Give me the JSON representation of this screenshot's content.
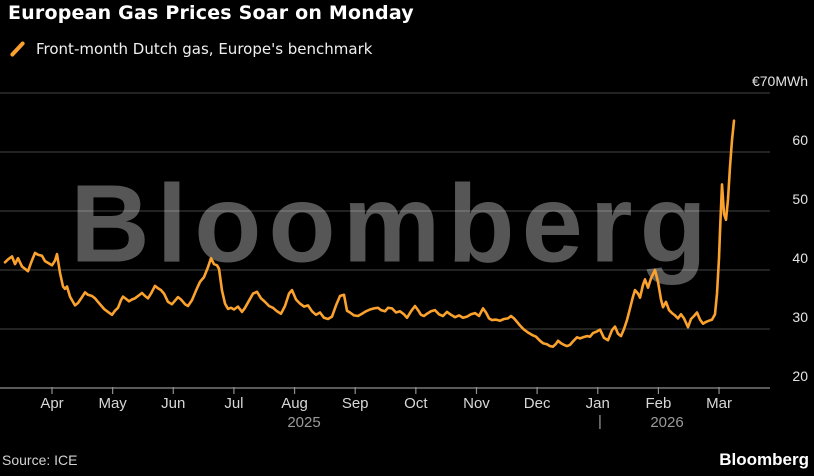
{
  "header": {
    "title": "European Gas Prices Soar on Monday",
    "legend_label": "Front-month Dutch gas, Europe's benchmark"
  },
  "watermark": {
    "text": "Bloomberg"
  },
  "footer": {
    "source": "Source: ICE",
    "brand": "Bloomberg"
  },
  "colors": {
    "background": "#000000",
    "line": "#FBA12D",
    "grid": "rgba(255,255,255,0.27)",
    "axis": "#909090",
    "watermark": "#565656"
  },
  "chart_data": {
    "type": "line",
    "title": "European Gas Prices Soar on Monday",
    "series_name": "Front-month Dutch gas, Europe's benchmark",
    "ylabel": "EUR/MWh",
    "ylim": [
      20,
      70
    ],
    "grid": "horizontal",
    "y_axis": {
      "side": "right",
      "ticks": [
        {
          "value": 70,
          "label": "€70MWh"
        },
        {
          "value": 60,
          "label": "60"
        },
        {
          "value": 50,
          "label": "50"
        },
        {
          "value": 40,
          "label": "40"
        },
        {
          "value": 30,
          "label": "30"
        },
        {
          "value": 20,
          "label": "20"
        }
      ]
    },
    "x_axis": {
      "months": [
        "Apr",
        "May",
        "Jun",
        "Jul",
        "Aug",
        "Sep",
        "Oct",
        "Nov",
        "Dec",
        "Jan",
        "Feb",
        "Mar"
      ],
      "years": [
        "2025",
        "2026"
      ],
      "year_divider": "|"
    },
    "summary": {
      "start_value_eur": 41,
      "december_low_eur": 27,
      "february_peak_eur": 40,
      "final_spike_high_eur": 65,
      "intermediate_spike_eur": 54.5
    },
    "points": [
      [
        5,
        41.3
      ],
      [
        8,
        41.8
      ],
      [
        12,
        42.3
      ],
      [
        15,
        41.0
      ],
      [
        18,
        42.0
      ],
      [
        22,
        40.6
      ],
      [
        25,
        40.2
      ],
      [
        28,
        39.8
      ],
      [
        31,
        41.2
      ],
      [
        35,
        42.9
      ],
      [
        38,
        42.6
      ],
      [
        42,
        42.4
      ],
      [
        45,
        41.5
      ],
      [
        48,
        41.2
      ],
      [
        52,
        40.8
      ],
      [
        55,
        41.6
      ],
      [
        57,
        42.7
      ],
      [
        60,
        39.5
      ],
      [
        63,
        37.2
      ],
      [
        65,
        36.8
      ],
      [
        67,
        37.2
      ],
      [
        70,
        35.5
      ],
      [
        73,
        34.6
      ],
      [
        75,
        34.0
      ],
      [
        78,
        34.4
      ],
      [
        82,
        35.4
      ],
      [
        85,
        36.2
      ],
      [
        88,
        35.8
      ],
      [
        92,
        35.6
      ],
      [
        95,
        35.2
      ],
      [
        98,
        34.6
      ],
      [
        101,
        34.0
      ],
      [
        104,
        33.4
      ],
      [
        108,
        32.9
      ],
      [
        112,
        32.4
      ],
      [
        115,
        33.1
      ],
      [
        118,
        33.6
      ],
      [
        121,
        34.9
      ],
      [
        123,
        35.5
      ],
      [
        126,
        35.1
      ],
      [
        129,
        34.7
      ],
      [
        132,
        35.0
      ],
      [
        135,
        35.2
      ],
      [
        138,
        35.6
      ],
      [
        142,
        36.1
      ],
      [
        145,
        35.6
      ],
      [
        148,
        35.2
      ],
      [
        151,
        36.0
      ],
      [
        155,
        37.3
      ],
      [
        158,
        36.9
      ],
      [
        161,
        36.6
      ],
      [
        164,
        36.0
      ],
      [
        168,
        34.6
      ],
      [
        172,
        34.2
      ],
      [
        175,
        34.8
      ],
      [
        178,
        35.4
      ],
      [
        181,
        35.0
      ],
      [
        185,
        34.2
      ],
      [
        188,
        33.9
      ],
      [
        192,
        34.9
      ],
      [
        196,
        36.5
      ],
      [
        200,
        38.0
      ],
      [
        204,
        38.8
      ],
      [
        208,
        40.5
      ],
      [
        211,
        42.0
      ],
      [
        214,
        41.0
      ],
      [
        217,
        40.8
      ],
      [
        219,
        40.2
      ],
      [
        222,
        36.5
      ],
      [
        225,
        34.3
      ],
      [
        228,
        33.4
      ],
      [
        231,
        33.6
      ],
      [
        234,
        33.3
      ],
      [
        238,
        33.8
      ],
      [
        242,
        32.9
      ],
      [
        245,
        33.6
      ],
      [
        249,
        34.8
      ],
      [
        253,
        36.0
      ],
      [
        257,
        36.3
      ],
      [
        261,
        35.2
      ],
      [
        265,
        34.6
      ],
      [
        269,
        33.9
      ],
      [
        273,
        33.6
      ],
      [
        277,
        33.0
      ],
      [
        281,
        32.6
      ],
      [
        285,
        33.9
      ],
      [
        289,
        36.0
      ],
      [
        292,
        36.6
      ],
      [
        296,
        35.0
      ],
      [
        300,
        34.3
      ],
      [
        304,
        33.8
      ],
      [
        308,
        34.0
      ],
      [
        312,
        33.0
      ],
      [
        316,
        32.4
      ],
      [
        320,
        32.8
      ],
      [
        324,
        31.9
      ],
      [
        328,
        31.7
      ],
      [
        332,
        32.1
      ],
      [
        336,
        34.0
      ],
      [
        340,
        35.6
      ],
      [
        344,
        35.8
      ],
      [
        347,
        33.1
      ],
      [
        350,
        32.8
      ],
      [
        354,
        32.3
      ],
      [
        358,
        32.2
      ],
      [
        362,
        32.6
      ],
      [
        366,
        33.0
      ],
      [
        370,
        33.3
      ],
      [
        374,
        33.5
      ],
      [
        378,
        33.6
      ],
      [
        381,
        33.2
      ],
      [
        385,
        33.0
      ],
      [
        388,
        33.6
      ],
      [
        392,
        33.5
      ],
      [
        396,
        32.8
      ],
      [
        400,
        33.0
      ],
      [
        404,
        32.5
      ],
      [
        407,
        31.9
      ],
      [
        411,
        33.0
      ],
      [
        415,
        33.9
      ],
      [
        418,
        33.2
      ],
      [
        421,
        32.4
      ],
      [
        424,
        32.2
      ],
      [
        427,
        32.6
      ],
      [
        431,
        33.0
      ],
      [
        435,
        33.2
      ],
      [
        439,
        32.5
      ],
      [
        443,
        32.2
      ],
      [
        447,
        32.9
      ],
      [
        451,
        32.4
      ],
      [
        455,
        32.0
      ],
      [
        459,
        32.3
      ],
      [
        463,
        31.9
      ],
      [
        467,
        32.1
      ],
      [
        471,
        32.5
      ],
      [
        475,
        32.7
      ],
      [
        479,
        32.2
      ],
      [
        483,
        33.5
      ],
      [
        486,
        32.8
      ],
      [
        489,
        31.8
      ],
      [
        492,
        31.5
      ],
      [
        496,
        31.6
      ],
      [
        500,
        31.4
      ],
      [
        504,
        31.7
      ],
      [
        508,
        31.8
      ],
      [
        511,
        32.2
      ],
      [
        514,
        31.8
      ],
      [
        517,
        31.2
      ],
      [
        520,
        30.6
      ],
      [
        524,
        29.9
      ],
      [
        528,
        29.4
      ],
      [
        532,
        29.0
      ],
      [
        536,
        28.7
      ],
      [
        540,
        28.0
      ],
      [
        543,
        27.6
      ],
      [
        547,
        27.4
      ],
      [
        550,
        27.1
      ],
      [
        553,
        27.0
      ],
      [
        556,
        27.5
      ],
      [
        558,
        28.0
      ],
      [
        561,
        27.6
      ],
      [
        564,
        27.3
      ],
      [
        567,
        27.1
      ],
      [
        570,
        27.3
      ],
      [
        573,
        27.9
      ],
      [
        577,
        28.6
      ],
      [
        580,
        28.4
      ],
      [
        583,
        28.6
      ],
      [
        587,
        28.8
      ],
      [
        590,
        28.7
      ],
      [
        593,
        29.3
      ],
      [
        597,
        29.6
      ],
      [
        600,
        29.9
      ],
      [
        604,
        28.5
      ],
      [
        608,
        28.1
      ],
      [
        612,
        29.8
      ],
      [
        615,
        30.4
      ],
      [
        618,
        29.2
      ],
      [
        621,
        28.8
      ],
      [
        624,
        30.0
      ],
      [
        627,
        31.5
      ],
      [
        630,
        33.5
      ],
      [
        633,
        35.5
      ],
      [
        635,
        36.6
      ],
      [
        638,
        36.0
      ],
      [
        640,
        35.3
      ],
      [
        643,
        37.5
      ],
      [
        645,
        38.4
      ],
      [
        648,
        37.0
      ],
      [
        651,
        38.6
      ],
      [
        655,
        40.0
      ],
      [
        658,
        38.0
      ],
      [
        661,
        35.0
      ],
      [
        663,
        33.7
      ],
      [
        666,
        34.6
      ],
      [
        669,
        33.2
      ],
      [
        672,
        32.7
      ],
      [
        675,
        32.3
      ],
      [
        678,
        31.8
      ],
      [
        681,
        32.5
      ],
      [
        684,
        31.8
      ],
      [
        688,
        30.3
      ],
      [
        691,
        31.7
      ],
      [
        694,
        32.2
      ],
      [
        697,
        32.8
      ],
      [
        700,
        31.6
      ],
      [
        703,
        30.9
      ],
      [
        706,
        31.2
      ],
      [
        709,
        31.4
      ],
      [
        712,
        31.6
      ],
      [
        715,
        32.5
      ],
      [
        717,
        36.0
      ],
      [
        719,
        42.0
      ],
      [
        720,
        46.5
      ],
      [
        722,
        54.5
      ],
      [
        724,
        49.5
      ],
      [
        726,
        48.5
      ],
      [
        728,
        52.0
      ],
      [
        730,
        57.5
      ],
      [
        732,
        62.0
      ],
      [
        734,
        65.3
      ]
    ]
  }
}
